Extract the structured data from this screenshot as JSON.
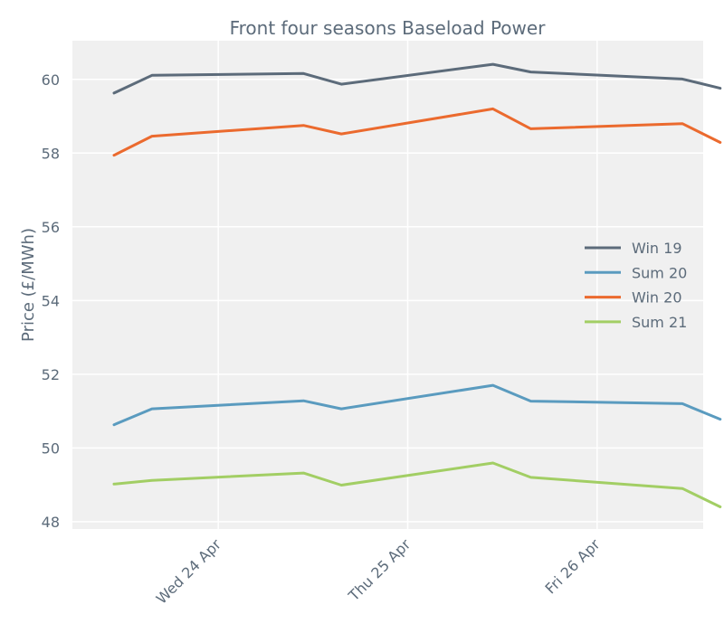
{
  "chart_data": {
    "type": "line",
    "title": "Front four seasons Baseload Power",
    "xlabel": "",
    "ylabel": "Price (£/MWh)",
    "ylim": [
      47.8,
      61.05
    ],
    "xlim": [
      -0.77,
      2.56
    ],
    "yticks": [
      48,
      50,
      52,
      54,
      56,
      58,
      60
    ],
    "xticks": [
      {
        "value": 0,
        "label": "Wed 24 Apr"
      },
      {
        "value": 1,
        "label": "Thu 25 Apr"
      },
      {
        "value": 2,
        "label": "Fri 26 Apr"
      }
    ],
    "x": [
      -0.55,
      -0.35,
      0.45,
      0.65,
      1.45,
      1.65,
      2.45,
      2.65
    ],
    "series": [
      {
        "name": "Win 19",
        "color": "#5c6b7a",
        "values": [
          59.63,
          60.11,
          60.16,
          59.87,
          60.41,
          60.2,
          60.01,
          59.76
        ]
      },
      {
        "name": "Sum 20",
        "color": "#5a9bbf",
        "values": [
          50.63,
          51.06,
          51.28,
          51.06,
          51.7,
          51.27,
          51.2,
          50.78
        ]
      },
      {
        "name": "Win 20",
        "color": "#eb6a2e",
        "values": [
          57.94,
          58.46,
          58.75,
          58.52,
          59.2,
          58.66,
          58.8,
          58.29
        ]
      },
      {
        "name": "Sum 21",
        "color": "#a2ce64",
        "values": [
          49.02,
          49.12,
          49.32,
          48.99,
          49.59,
          49.2,
          48.9,
          48.4
        ]
      }
    ],
    "legend_position": "center-right"
  }
}
